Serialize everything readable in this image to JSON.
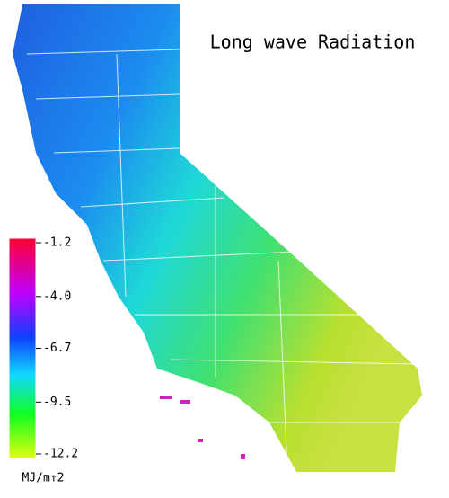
{
  "title": "Long wave Radiation",
  "legend": {
    "lim": [
      -12.2,
      -1.2
    ],
    "ticks": [
      -1.2,
      {
        "value": -4,
        "label": "-4.0"
      },
      -6.7,
      -9.5,
      -12.2
    ],
    "unit": "MJ/m↑2"
  }
}
